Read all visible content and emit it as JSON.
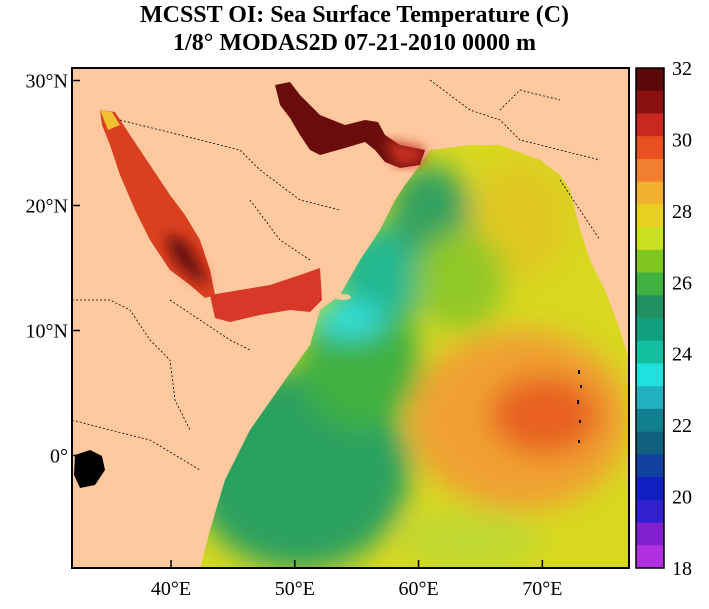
{
  "title": {
    "line1": "MCSST OI:  Sea Surface Temperature (C)",
    "line2": "1/8° MODAS2D 07-21-2010 0000 m"
  },
  "map": {
    "region": "Arabian Sea / Red Sea / Persian Gulf",
    "lon_range": [
      32,
      77
    ],
    "lat_range": [
      -9,
      31
    ],
    "lat_ticks": [
      {
        "value": 30,
        "label": "30°N"
      },
      {
        "value": 20,
        "label": "20°N"
      },
      {
        "value": 10,
        "label": "10°N"
      },
      {
        "value": 0,
        "label": "0°"
      }
    ],
    "lon_ticks": [
      {
        "value": 40,
        "label": "40°E"
      },
      {
        "value": 50,
        "label": "50°E"
      },
      {
        "value": 60,
        "label": "60°E"
      },
      {
        "value": 70,
        "label": "70°E"
      }
    ],
    "land_color": "#ffc9a0",
    "sst_regions": [
      {
        "name": "open-ocean-south",
        "temp": 25.5
      },
      {
        "name": "warm-pool-east",
        "temp": 30
      },
      {
        "name": "somali-upwelling",
        "temp": 23.5
      },
      {
        "name": "red-sea",
        "temp": 31
      },
      {
        "name": "gulf-of-aden",
        "temp": 31
      },
      {
        "name": "persian-gulf",
        "temp": 32
      },
      {
        "name": "india-coastal",
        "temp": 28.5
      }
    ]
  },
  "colorbar": {
    "min": 18,
    "max": 32,
    "labels": [
      "32",
      "30",
      "28",
      "26",
      "24",
      "22",
      "20",
      "18"
    ],
    "colors_top_to_bottom": [
      "#5a0808",
      "#8b1010",
      "#c82820",
      "#e85020",
      "#f08030",
      "#f0b030",
      "#e8d020",
      "#c8e020",
      "#80c820",
      "#40b040",
      "#209060",
      "#10a080",
      "#10c0a0",
      "#20e0e0",
      "#20b0c0",
      "#108090",
      "#106080",
      "#1040a0",
      "#1020c0",
      "#3020d0",
      "#8020d0",
      "#b030e0"
    ]
  }
}
